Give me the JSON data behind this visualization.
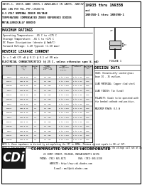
{
  "title_left_lines": [
    "1N935-1, 1N935-1AND 1N935-1 AVAILABLE IN JANTX, JANTXV,",
    "AND JAN PER MIL-PRF-19500/91",
    "8.5 VOLT NOMINAL ZENER VOLTAGE",
    "TEMPERATURE COMPENSATED ZENER REFERENCE DIODES",
    "METALLURGICALLY BONDED"
  ],
  "title_right_line1": "1N935 thru 1N935B",
  "title_right_line2": "and",
  "title_right_line3": "1N935B-1 thru 1N939B-1",
  "section_max_ratings": "MAXIMUM RATINGS",
  "max_ratings_lines": [
    "Operating Temperature: -65 C to +175 C",
    "Storage Temperature: -65 C to +175 C",
    "DC Power Dissipation (derate @ 6mW/C)",
    "Forward Voltage: 1.2V Typical (1.5V max)"
  ],
  "section_reverse": "REVERSE LEAKAGE CURRENT",
  "reverse_line": "Ir = 1 mA (25 uA @ 0.1) @ 0.1 of VR min",
  "section_elec": "ELECTRICAL CHARACTERISTICS (@ 25 C, unless otherwise spec'd, mA)",
  "col_headers": [
    "DEVICE\nNUMBER",
    "ZENER\nVOLTAGE\nVz@IzT\n(v)",
    "ZENER\nCURRENT\nIzT\n(mA)",
    "MAXIMUM\nZENER\nIMPEDANCE\n(Ohms) Zz\nIzT   IzK",
    "MAXIMUM\nTEMP\nCOEFFICIENT\n%/C\nTCP(ZT)",
    "COMPENSATION\nACCURACY",
    "ZENER\nBREAKDOWN\nCURRENT\n(mA)"
  ],
  "table_rows": [
    [
      "1N935",
      "8.55-8.60",
      "7.5",
      "30  600",
      "0 to +.001",
      "0 to +.03",
      "0.25"
    ],
    [
      "1N935A",
      "8.85-9.15",
      "7.5",
      "30  600",
      "0 to +.001",
      "0 to +.03",
      "0.25"
    ],
    [
      "1N935B",
      "8.55-9.45",
      "7.5",
      "30  600",
      "0 to +.001",
      "0 to +.03",
      "0.25"
    ],
    [
      "1N936",
      "8.55-8.60",
      "7.5",
      "30  600",
      "0 to +.001",
      "0 to +.03",
      "0.25"
    ],
    [
      "1N936A",
      "8.85-9.15",
      "7.5",
      "30  600",
      "0 to +.001",
      "0 to +.03",
      "0.25"
    ],
    [
      "1N936B",
      "8.55-9.45",
      "7.5",
      "30  600",
      "0 to +.001",
      "0 to +.03",
      "0.25"
    ],
    [
      "1N937",
      "8.55-8.60",
      "7.5",
      "30  600",
      "0 to +.001",
      "0 to +.03",
      "0.25"
    ],
    [
      "1N937A",
      "8.85-9.15",
      "7.5",
      "30  600",
      "0 to +.001",
      "0 to +.03",
      "0.25"
    ],
    [
      "1N937B",
      "8.55-9.45",
      "7.5",
      "30  600",
      "0 to +.001",
      "0 to +.03",
      "0.25"
    ],
    [
      "1N938",
      "8.55-8.60",
      "7.5",
      "30  600",
      "0 to +.001",
      "0 to +.03",
      "0.25"
    ],
    [
      "1N938A",
      "8.85-9.15",
      "7.5",
      "30  600",
      "0 to +.001",
      "0 to +.03",
      "0.25"
    ],
    [
      "1N938B",
      "8.55-9.45",
      "7.5",
      "30  600",
      "0 to +.001",
      "0 to +.03",
      "0.25"
    ],
    [
      "1N939",
      "8.55-8.60",
      "7.5",
      "30  600",
      "0 to +.001",
      "0 to +.03",
      "0.25"
    ],
    [
      "1N939A",
      "8.85-9.15",
      "7.5",
      "30  600",
      "0 to +.001",
      "0 to +.03",
      "0.25"
    ],
    [
      "1N939B",
      "8.55-9.45",
      "7.5",
      "30  600",
      "0 to +.001",
      "0 to +.03",
      "0.25"
    ]
  ],
  "note1": "NOTE 1: Zener impedance is derived by extrapolating the IZT to 40MHz. Minimum current equals to 10% of IZT.",
  "note2": "NOTE 2: The maximum allowable change observed over the entire normal temperature range is that the voltage will not at any temperature peripheral between the compliance limits, per JEDEC standard No. 2.",
  "design_data_title": "DESIGN DATA",
  "design_data_lines": [
    "CASE: Hermetically sealed glass",
    "base DO - 35 outline.",
    " ",
    "LEAD MATERIAL: Copper clad steel",
    " ",
    "LEAD FINISH: Tin (Lead)",
    " ",
    "POLARITY: Diode to be operated with",
    "the banded cathode end positive.",
    " ",
    "MAXIMUM POWER: 0.5 W"
  ],
  "figure_label": "FIGURE 1",
  "company_name": "COMPENSATED DEVICES INCORPORATED",
  "company_addr": "22 COREY STREET, MELROSE, MASSACHUSETTS 02176",
  "company_phone": "PHONE: (781) 665-6571          FAX: (781) 665-5330",
  "company_web": "WEBSITE: http://www.cdi-diodes.com",
  "company_email": "E-mail: mail@cdi-diodes.com",
  "logo_bg": "#1a1a1a",
  "logo_fg": "#ffffff",
  "bg": "#ffffff",
  "black": "#000000",
  "gray_header": "#d8d8d8"
}
